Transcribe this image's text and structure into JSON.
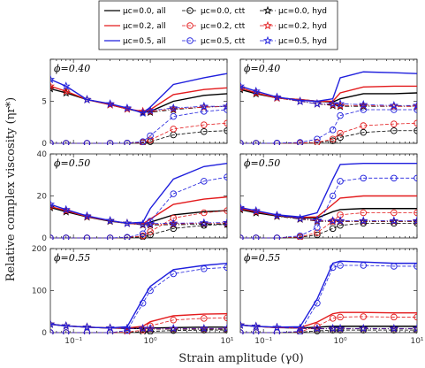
{
  "chart_data": {
    "type": "line",
    "xlabel": "Strain amplitude (γ0)",
    "ylabel": "Relative complex viscosity (ηr*)",
    "xscale": "log",
    "xlim": [
      0.05,
      10
    ],
    "x_ticks": [
      0.1,
      1,
      10
    ],
    "x_tick_labels": [
      "10⁻¹",
      "10⁰",
      "10¹"
    ],
    "legend": {
      "placement": "top-center",
      "entries": [
        {
          "label": "μc=0.0, all",
          "color": "#000000",
          "dash": "solid",
          "marker": "none"
        },
        {
          "label": "μc=0.0, ctt",
          "color": "#000000",
          "dash": "dashed",
          "marker": "circle"
        },
        {
          "label": "μc=0.0, hyd",
          "color": "#000000",
          "dash": "dashdot",
          "marker": "star"
        },
        {
          "label": "μc=0.2, all",
          "color": "#e31a1c",
          "dash": "solid",
          "marker": "none"
        },
        {
          "label": "μc=0.2, ctt",
          "color": "#e31a1c",
          "dash": "dashed",
          "marker": "circle"
        },
        {
          "label": "μc=0.2, hyd",
          "color": "#e31a1c",
          "dash": "dashdot",
          "marker": "star"
        },
        {
          "label": "μc=0.5, all",
          "color": "#1f1fdd",
          "dash": "solid",
          "marker": "none"
        },
        {
          "label": "μc=0.5, ctt",
          "color": "#1f1fdd",
          "dash": "dashed",
          "marker": "circle"
        },
        {
          "label": "μc=0.5, hyd",
          "color": "#1f1fdd",
          "dash": "dashdot",
          "marker": "star"
        }
      ]
    },
    "x": [
      0.05,
      0.08,
      0.15,
      0.3,
      0.5,
      0.8,
      1.0,
      2.0,
      5.0,
      10.0
    ],
    "panels": [
      {
        "title": "ϕ=0.40",
        "row": 0,
        "col": 0,
        "ylim": [
          0,
          10
        ],
        "yticks": [
          0,
          5
        ],
        "series": [
          {
            "legend": 0,
            "values": [
              6.5,
              6.0,
              5.2,
              4.6,
              4.1,
              3.7,
              3.8,
              5.0,
              5.7,
              5.9
            ]
          },
          {
            "legend": 1,
            "values": [
              0,
              0,
              0,
              0,
              0.01,
              0.05,
              0.2,
              1.0,
              1.4,
              1.5
            ]
          },
          {
            "legend": 2,
            "values": [
              6.5,
              6.0,
              5.2,
              4.6,
              4.1,
              3.7,
              3.7,
              4.0,
              4.3,
              4.4
            ]
          },
          {
            "legend": 3,
            "values": [
              6.8,
              6.2,
              5.2,
              4.6,
              4.1,
              3.8,
              4.0,
              5.8,
              6.4,
              6.6
            ]
          },
          {
            "legend": 4,
            "values": [
              0,
              0,
              0,
              0,
              0.02,
              0.1,
              0.4,
              1.7,
              2.2,
              2.4
            ]
          },
          {
            "legend": 5,
            "values": [
              6.8,
              6.2,
              5.2,
              4.6,
              4.1,
              3.8,
              3.8,
              4.1,
              4.3,
              4.4
            ]
          },
          {
            "legend": 6,
            "values": [
              7.6,
              6.8,
              5.2,
              4.7,
              4.2,
              3.6,
              4.3,
              7.0,
              7.8,
              8.3
            ]
          },
          {
            "legend": 7,
            "values": [
              0,
              0,
              0,
              0,
              0.02,
              0.2,
              0.9,
              3.2,
              3.8,
              4.0
            ]
          },
          {
            "legend": 8,
            "values": [
              7.6,
              6.8,
              5.2,
              4.7,
              4.2,
              3.6,
              3.9,
              4.2,
              4.4,
              4.4
            ]
          }
        ]
      },
      {
        "title": "ϕ=0.40",
        "row": 0,
        "col": 1,
        "ylim": [
          0,
          10
        ],
        "yticks": [],
        "series": [
          {
            "legend": 0,
            "values": [
              6.4,
              5.9,
              5.4,
              5.2,
              5.0,
              4.9,
              5.3,
              5.9,
              5.9,
              6.0
            ]
          },
          {
            "legend": 1,
            "values": [
              0,
              0,
              0,
              0.02,
              0.08,
              0.3,
              0.7,
              1.3,
              1.5,
              1.5
            ]
          },
          {
            "legend": 2,
            "values": [
              6.4,
              5.9,
              5.4,
              5.0,
              4.7,
              4.5,
              4.4,
              4.4,
              4.4,
              4.4
            ]
          },
          {
            "legend": 3,
            "values": [
              6.6,
              6.0,
              5.4,
              5.2,
              5.0,
              5.0,
              6.0,
              6.7,
              6.8,
              6.8
            ]
          },
          {
            "legend": 4,
            "values": [
              0,
              0,
              0,
              0.03,
              0.1,
              0.5,
              1.2,
              2.1,
              2.3,
              2.4
            ]
          },
          {
            "legend": 5,
            "values": [
              6.6,
              6.0,
              5.4,
              5.0,
              4.7,
              4.6,
              4.5,
              4.5,
              4.4,
              4.4
            ]
          },
          {
            "legend": 6,
            "values": [
              6.8,
              6.2,
              5.5,
              5.1,
              5.0,
              5.3,
              7.8,
              8.5,
              8.4,
              8.3
            ]
          },
          {
            "legend": 7,
            "values": [
              0,
              0,
              0.02,
              0.1,
              0.5,
              1.6,
              3.3,
              4.0,
              4.0,
              4.0
            ]
          },
          {
            "legend": 8,
            "values": [
              6.8,
              6.2,
              5.5,
              5.0,
              4.7,
              4.7,
              4.7,
              4.6,
              4.5,
              4.5
            ]
          }
        ]
      },
      {
        "title": "ϕ=0.50",
        "row": 1,
        "col": 0,
        "ylim": [
          0,
          40
        ],
        "yticks": [
          0,
          20,
          40
        ],
        "series": [
          {
            "legend": 0,
            "values": [
              14.5,
              12.5,
              10.0,
              8.0,
              7.0,
              6.5,
              7.5,
              11.0,
              12.5,
              13.0
            ]
          },
          {
            "legend": 1,
            "values": [
              0,
              0,
              0,
              0,
              0.1,
              0.5,
              1.5,
              4.5,
              6.0,
              6.5
            ]
          },
          {
            "legend": 2,
            "values": [
              14.5,
              12.5,
              10.0,
              8.0,
              7.0,
              6.2,
              6.2,
              6.3,
              6.5,
              6.5
            ]
          },
          {
            "legend": 3,
            "values": [
              15.0,
              13.0,
              10.2,
              8.2,
              7.0,
              6.7,
              9.0,
              16.0,
              18.5,
              19.5
            ]
          },
          {
            "legend": 4,
            "values": [
              0,
              0,
              0,
              0,
              0.2,
              1.0,
              3.0,
              9.5,
              12.0,
              13.0
            ]
          },
          {
            "legend": 5,
            "values": [
              15.0,
              13.0,
              10.2,
              8.2,
              7.0,
              6.4,
              6.5,
              6.7,
              7.0,
              7.0
            ]
          },
          {
            "legend": 6,
            "values": [
              16.0,
              13.5,
              10.5,
              8.3,
              7.0,
              7.5,
              14.0,
              28.0,
              34.0,
              35.5
            ]
          },
          {
            "legend": 7,
            "values": [
              0,
              0,
              0,
              0,
              0.3,
              2.0,
              8.0,
              21.0,
              27.0,
              29.0
            ]
          },
          {
            "legend": 8,
            "values": [
              16.0,
              13.5,
              10.5,
              8.3,
              7.0,
              6.6,
              6.8,
              7.0,
              7.2,
              7.3
            ]
          }
        ]
      },
      {
        "title": "ϕ=0.50",
        "row": 1,
        "col": 1,
        "ylim": [
          0,
          40
        ],
        "yticks": [],
        "series": [
          {
            "legend": 0,
            "values": [
              13.5,
              12.0,
              10.5,
              9.5,
              9.5,
              12.5,
              13.5,
              14.0,
              14.0,
              14.0
            ]
          },
          {
            "legend": 1,
            "values": [
              0,
              0,
              0,
              0.3,
              1.5,
              4.5,
              6.0,
              7.0,
              7.0,
              7.0
            ]
          },
          {
            "legend": 2,
            "values": [
              13.5,
              12.0,
              10.3,
              9.0,
              8.0,
              7.8,
              7.8,
              7.8,
              7.8,
              7.8
            ]
          },
          {
            "legend": 3,
            "values": [
              14.0,
              12.5,
              10.8,
              9.8,
              10.0,
              16.0,
              19.0,
              20.0,
              20.0,
              20.0
            ]
          },
          {
            "legend": 4,
            "values": [
              0,
              0,
              0,
              0.5,
              2.5,
              8.0,
              11.0,
              12.0,
              12.0,
              12.0
            ]
          },
          {
            "legend": 5,
            "values": [
              14.0,
              12.5,
              10.6,
              9.2,
              8.2,
              8.0,
              8.0,
              8.0,
              8.0,
              8.0
            ]
          },
          {
            "legend": 6,
            "values": [
              14.5,
              13.0,
              11.0,
              10.0,
              12.0,
              28.0,
              35.0,
              35.5,
              35.5,
              35.5
            ]
          },
          {
            "legend": 7,
            "values": [
              0,
              0,
              0,
              1.0,
              5.0,
              20.0,
              27.0,
              28.5,
              28.5,
              28.5
            ]
          },
          {
            "legend": 8,
            "values": [
              14.5,
              13.0,
              10.8,
              9.3,
              8.5,
              8.2,
              8.2,
              8.2,
              8.2,
              8.2
            ]
          }
        ]
      },
      {
        "title": "ϕ=0.55",
        "row": 2,
        "col": 0,
        "ylim": [
          0,
          200
        ],
        "yticks": [
          0,
          100,
          200
        ],
        "series": [
          {
            "legend": 0,
            "values": [
              20.0,
              16.0,
              13.0,
              11.0,
              10.0,
              10.0,
              11.0,
              12.0,
              13.0,
              13.0
            ]
          },
          {
            "legend": 1,
            "values": [
              0,
              0,
              0,
              0,
              0.5,
              1.5,
              3.0,
              5.0,
              6.0,
              6.0
            ]
          },
          {
            "legend": 2,
            "values": [
              20.0,
              16.0,
              13.0,
              11.0,
              10.0,
              9.0,
              8.5,
              8.0,
              8.0,
              8.0
            ]
          },
          {
            "legend": 3,
            "values": [
              20.0,
              16.0,
              13.0,
              11.0,
              11.0,
              15.0,
              26.0,
              40.0,
              44.0,
              45.0
            ]
          },
          {
            "legend": 4,
            "values": [
              0,
              0,
              0,
              0,
              1.0,
              6.0,
              16.0,
              30.0,
              34.0,
              35.0
            ]
          },
          {
            "legend": 5,
            "values": [
              20.0,
              16.0,
              13.0,
              11.0,
              10.0,
              9.5,
              9.0,
              9.0,
              9.0,
              9.0
            ]
          },
          {
            "legend": 6,
            "values": [
              20.0,
              16.0,
              13.0,
              11.0,
              14.0,
              80.0,
              110.0,
              150.0,
              160.0,
              165.0
            ]
          },
          {
            "legend": 7,
            "values": [
              0,
              0,
              0,
              0,
              5.0,
              70.0,
              100.0,
              140.0,
              152.0,
              155.0
            ]
          },
          {
            "legend": 8,
            "values": [
              20.0,
              16.0,
              13.0,
              11.0,
              10.0,
              10.0,
              10.0,
              10.0,
              10.0,
              10.0
            ]
          }
        ]
      },
      {
        "title": "ϕ=0.55",
        "row": 2,
        "col": 1,
        "ylim": [
          0,
          200
        ],
        "yticks": [],
        "series": [
          {
            "legend": 0,
            "values": [
              18.0,
              15.0,
              12.0,
              11.0,
              13.0,
              15.0,
              15.0,
              15.0,
              15.0,
              15.0
            ]
          },
          {
            "legend": 1,
            "values": [
              0,
              0,
              0,
              1.0,
              4.0,
              6.0,
              6.0,
              6.0,
              6.0,
              6.0
            ]
          },
          {
            "legend": 2,
            "values": [
              18.0,
              15.0,
              12.0,
              10.0,
              9.0,
              9.0,
              9.0,
              9.0,
              9.0,
              9.0
            ]
          },
          {
            "legend": 3,
            "values": [
              18.0,
              15.0,
              12.0,
              12.0,
              25.0,
              45.0,
              48.0,
              48.0,
              47.0,
              47.0
            ]
          },
          {
            "legend": 4,
            "values": [
              0,
              0,
              0,
              2.0,
              15.0,
              34.0,
              37.0,
              38.0,
              37.0,
              37.0
            ]
          },
          {
            "legend": 5,
            "values": [
              18.0,
              15.0,
              12.0,
              10.0,
              9.5,
              9.5,
              9.5,
              9.5,
              9.5,
              9.5
            ]
          },
          {
            "legend": 6,
            "values": [
              18.0,
              15.0,
              13.0,
              14.0,
              80.0,
              165.0,
              170.0,
              168.0,
              165.0,
              165.0
            ]
          },
          {
            "legend": 7,
            "values": [
              0,
              0,
              0,
              3.0,
              70.0,
              155.0,
              160.0,
              160.0,
              158.0,
              158.0
            ]
          },
          {
            "legend": 8,
            "values": [
              18.0,
              15.0,
              12.5,
              11.0,
              10.0,
              10.0,
              10.0,
              10.0,
              10.0,
              10.0
            ]
          }
        ]
      }
    ]
  }
}
